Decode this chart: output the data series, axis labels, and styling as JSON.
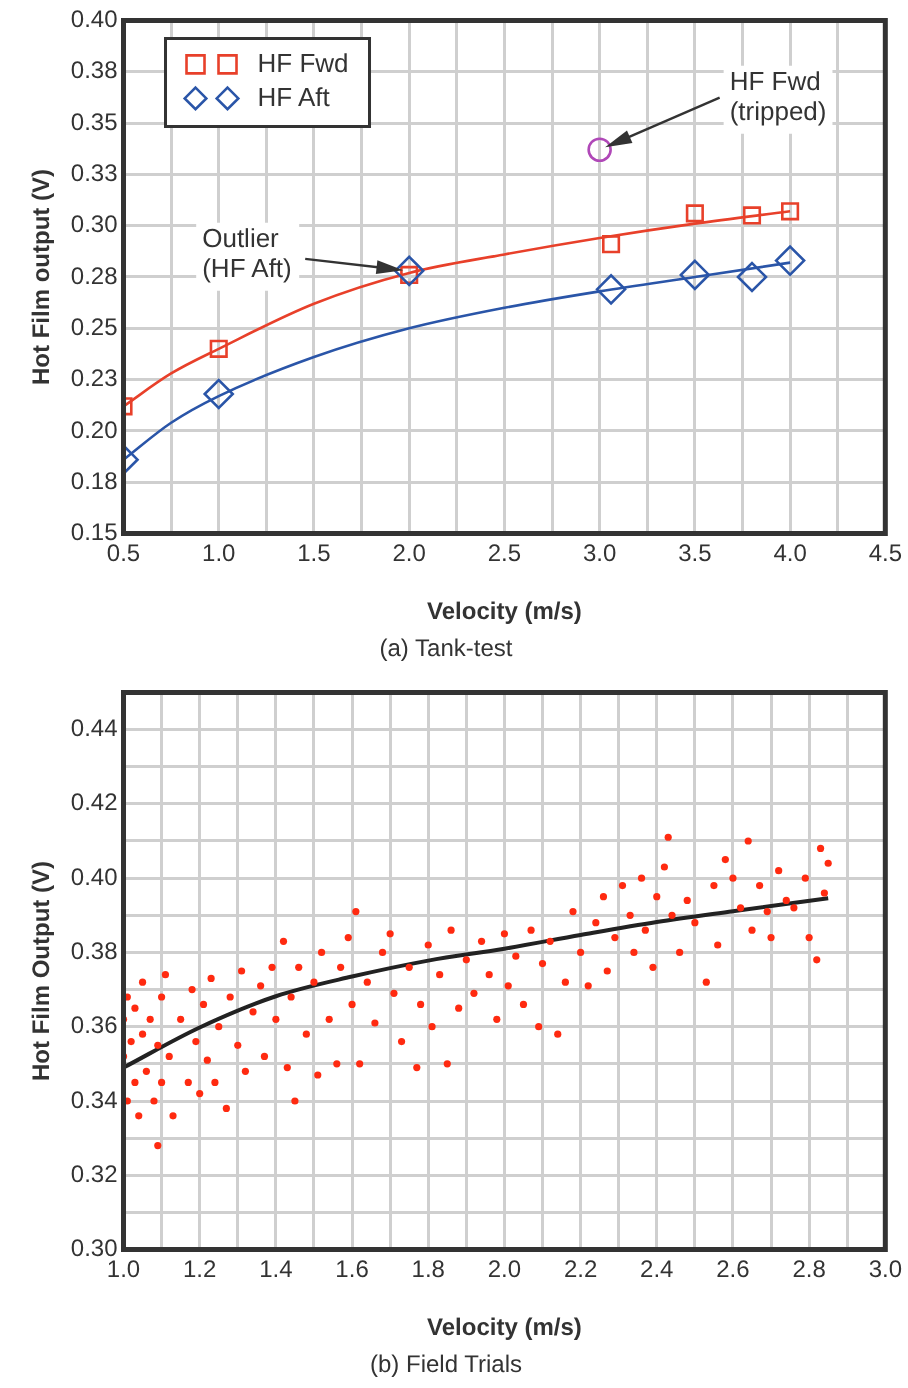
{
  "chart_data": [
    {
      "type": "scatter",
      "title": "(a) Tank-test",
      "xlabel": "Velocity (m/s)",
      "ylabel": "Hot Film output (V)",
      "xlim": [
        0.5,
        4.5
      ],
      "ylim": [
        0.15,
        0.4
      ],
      "xticks": [
        0.5,
        {
          "value": 0.75,
          "label": null
        },
        {
          "value": 1,
          "label": "1.0"
        },
        {
          "value": 1.25,
          "label": null
        },
        1.5,
        {
          "value": 1.75,
          "label": null
        },
        {
          "value": 2,
          "label": "2.0"
        },
        {
          "value": 2.25,
          "label": null
        },
        2.5,
        {
          "value": 2.75,
          "label": null
        },
        {
          "value": 3,
          "label": "3.0"
        },
        {
          "value": 3.25,
          "label": null
        },
        3.5,
        {
          "value": 3.75,
          "label": null
        },
        {
          "value": 4,
          "label": "4.0"
        },
        {
          "value": 4.25,
          "label": null
        },
        4.5
      ],
      "yticks": [
        0.15,
        {
          "value": 0.175,
          "label": "0.18"
        },
        {
          "value": 0.2,
          "label": "0.20"
        },
        {
          "value": 0.225,
          "label": "0.23"
        },
        0.25,
        {
          "value": 0.275,
          "label": "0.28"
        },
        {
          "value": 0.3,
          "label": "0.30"
        },
        {
          "value": 0.325,
          "label": "0.33"
        },
        0.35,
        {
          "value": 0.375,
          "label": "0.38"
        },
        {
          "value": 0.4,
          "label": "0.40"
        }
      ],
      "grid": true,
      "legend": "top left",
      "series": [
        {
          "name": "HF Fwd",
          "type": "scatter",
          "marker": "square",
          "color": "#e8402a",
          "x": [
            0.5,
            1,
            2,
            3.06,
            3.5,
            3.8,
            4
          ],
          "values": [
            0.212,
            0.24,
            0.276,
            0.291,
            0.306,
            0.305,
            0.307
          ]
        },
        {
          "name": "HF Aft",
          "type": "scatter",
          "marker": "diamond",
          "color": "#2a55a8",
          "x": [
            0.5,
            1,
            2,
            3.06,
            3.5,
            3.8,
            4
          ],
          "values": [
            0.186,
            0.218,
            0.278,
            0.269,
            0.276,
            0.275,
            0.283
          ]
        },
        {
          "type": "scatter",
          "marker": "circle",
          "color": "#b048b8",
          "x": [
            3
          ],
          "values": [
            0.337
          ]
        },
        {
          "type": "line",
          "marker": "none",
          "color": "#e8402a",
          "x": [
            0.5,
            0.75,
            1,
            1.5,
            2,
            2.5,
            3,
            3.5,
            4
          ],
          "values": [
            0.212,
            0.228,
            0.24,
            0.262,
            0.277,
            0.286,
            0.294,
            0.301,
            0.307
          ]
        },
        {
          "type": "line",
          "marker": "none",
          "color": "#2a55a8",
          "x": [
            0.5,
            0.75,
            1,
            1.5,
            2,
            2.5,
            3,
            3.5,
            4
          ],
          "values": [
            0.186,
            0.204,
            0.217,
            0.236,
            0.25,
            0.26,
            0.268,
            0.275,
            0.282
          ]
        }
      ],
      "annotations": [
        {
          "text": "Outlier\n(HF Aft)",
          "x": 2,
          "y": 0.278
        },
        {
          "text": "HF Fwd\n(tripped)",
          "x": 3,
          "y": 0.337
        }
      ]
    },
    {
      "type": "scatter",
      "title": "(b) Field Trials",
      "xlabel": "Velocity (m/s)",
      "ylabel": "Hot Film Output (V)",
      "xlim": [
        1,
        3
      ],
      "ylim": [
        0.3,
        0.45
      ],
      "xticks": [
        {
          "value": 1,
          "label": "1.0"
        },
        {
          "value": 1.1,
          "label": null
        },
        1.2,
        {
          "value": 1.3,
          "label": null
        },
        1.4,
        {
          "value": 1.5,
          "label": null
        },
        1.6,
        {
          "value": 1.7,
          "label": null
        },
        1.8,
        {
          "value": 1.9,
          "label": null
        },
        {
          "value": 2,
          "label": "2.0"
        },
        {
          "value": 2.1,
          "label": null
        },
        2.2,
        {
          "value": 2.3,
          "label": null
        },
        2.4,
        {
          "value": 2.5,
          "label": null
        },
        2.6,
        {
          "value": 2.7,
          "label": null
        },
        2.8,
        {
          "value": 2.9,
          "label": null
        },
        {
          "value": 3,
          "label": "3.0"
        }
      ],
      "yticks": [
        {
          "value": 0.3,
          "label": "0.30"
        },
        {
          "value": 0.31,
          "label": null
        },
        0.32,
        {
          "value": 0.33,
          "label": null
        },
        0.34,
        {
          "value": 0.35,
          "label": null
        },
        0.36,
        {
          "value": 0.37,
          "label": null
        },
        0.38,
        {
          "value": 0.39,
          "label": null
        },
        {
          "value": 0.4,
          "label": "0.40"
        },
        {
          "value": 0.41,
          "label": null
        },
        0.42,
        {
          "value": 0.43,
          "label": null
        },
        0.44,
        {
          "value": 0.45,
          "label": null
        }
      ],
      "grid": true,
      "series": [
        {
          "type": "scatter",
          "marker": "circle",
          "color": "#ff2a10",
          "x": [
            1.0,
            1.0,
            1.01,
            1.01,
            1.02,
            1.03,
            1.03,
            1.04,
            1.05,
            1.05,
            1.06,
            1.07,
            1.08,
            1.09,
            1.09,
            1.1,
            1.1,
            1.11,
            1.12,
            1.13,
            1.15,
            1.17,
            1.18,
            1.19,
            1.2,
            1.21,
            1.22,
            1.23,
            1.24,
            1.25,
            1.27,
            1.28,
            1.3,
            1.31,
            1.32,
            1.34,
            1.36,
            1.37,
            1.39,
            1.4,
            1.42,
            1.43,
            1.44,
            1.45,
            1.46,
            1.48,
            1.5,
            1.51,
            1.52,
            1.54,
            1.56,
            1.57,
            1.59,
            1.6,
            1.61,
            1.62,
            1.64,
            1.66,
            1.68,
            1.7,
            1.71,
            1.73,
            1.75,
            1.77,
            1.78,
            1.8,
            1.81,
            1.83,
            1.85,
            1.86,
            1.88,
            1.9,
            1.92,
            1.94,
            1.96,
            1.98,
            2.0,
            2.01,
            2.03,
            2.05,
            2.07,
            2.09,
            2.1,
            2.12,
            2.14,
            2.16,
            2.18,
            2.2,
            2.22,
            2.24,
            2.26,
            2.27,
            2.29,
            2.31,
            2.33,
            2.34,
            2.36,
            2.37,
            2.39,
            2.4,
            2.42,
            2.43,
            2.44,
            2.46,
            2.48,
            2.5,
            2.53,
            2.55,
            2.56,
            2.58,
            2.6,
            2.62,
            2.64,
            2.65,
            2.67,
            2.69,
            2.7,
            2.72,
            2.74,
            2.76,
            2.79,
            2.8,
            2.82,
            2.83,
            2.84,
            2.85
          ],
          "values": [
            0.352,
            0.362,
            0.34,
            0.368,
            0.356,
            0.345,
            0.365,
            0.336,
            0.358,
            0.372,
            0.348,
            0.362,
            0.34,
            0.328,
            0.355,
            0.368,
            0.345,
            0.374,
            0.352,
            0.336,
            0.362,
            0.345,
            0.37,
            0.356,
            0.342,
            0.366,
            0.351,
            0.373,
            0.345,
            0.36,
            0.338,
            0.368,
            0.355,
            0.375,
            0.348,
            0.364,
            0.371,
            0.352,
            0.376,
            0.362,
            0.383,
            0.349,
            0.368,
            0.34,
            0.376,
            0.358,
            0.372,
            0.347,
            0.38,
            0.362,
            0.35,
            0.376,
            0.384,
            0.366,
            0.391,
            0.35,
            0.372,
            0.361,
            0.38,
            0.385,
            0.369,
            0.356,
            0.376,
            0.349,
            0.366,
            0.382,
            0.36,
            0.374,
            0.35,
            0.386,
            0.365,
            0.378,
            0.369,
            0.383,
            0.374,
            0.362,
            0.385,
            0.371,
            0.379,
            0.366,
            0.386,
            0.36,
            0.377,
            0.383,
            0.358,
            0.372,
            0.391,
            0.38,
            0.371,
            0.388,
            0.395,
            0.375,
            0.384,
            0.398,
            0.39,
            0.38,
            0.4,
            0.386,
            0.376,
            0.395,
            0.403,
            0.411,
            0.39,
            0.38,
            0.394,
            0.388,
            0.372,
            0.398,
            0.382,
            0.405,
            0.4,
            0.392,
            0.41,
            0.386,
            0.398,
            0.391,
            0.384,
            0.402,
            0.394,
            0.392,
            0.4,
            0.384,
            0.378,
            0.408,
            0.396,
            0.404
          ]
        },
        {
          "type": "line",
          "marker": "none",
          "color": "#222222",
          "x": [
            1,
            1.2,
            1.4,
            1.6,
            1.8,
            2,
            2.2,
            2.4,
            2.6,
            2.85
          ],
          "values": [
            0.349,
            0.3598,
            0.3682,
            0.3735,
            0.3778,
            0.381,
            0.3847,
            0.3882,
            0.3911,
            0.3946
          ]
        }
      ]
    }
  ]
}
